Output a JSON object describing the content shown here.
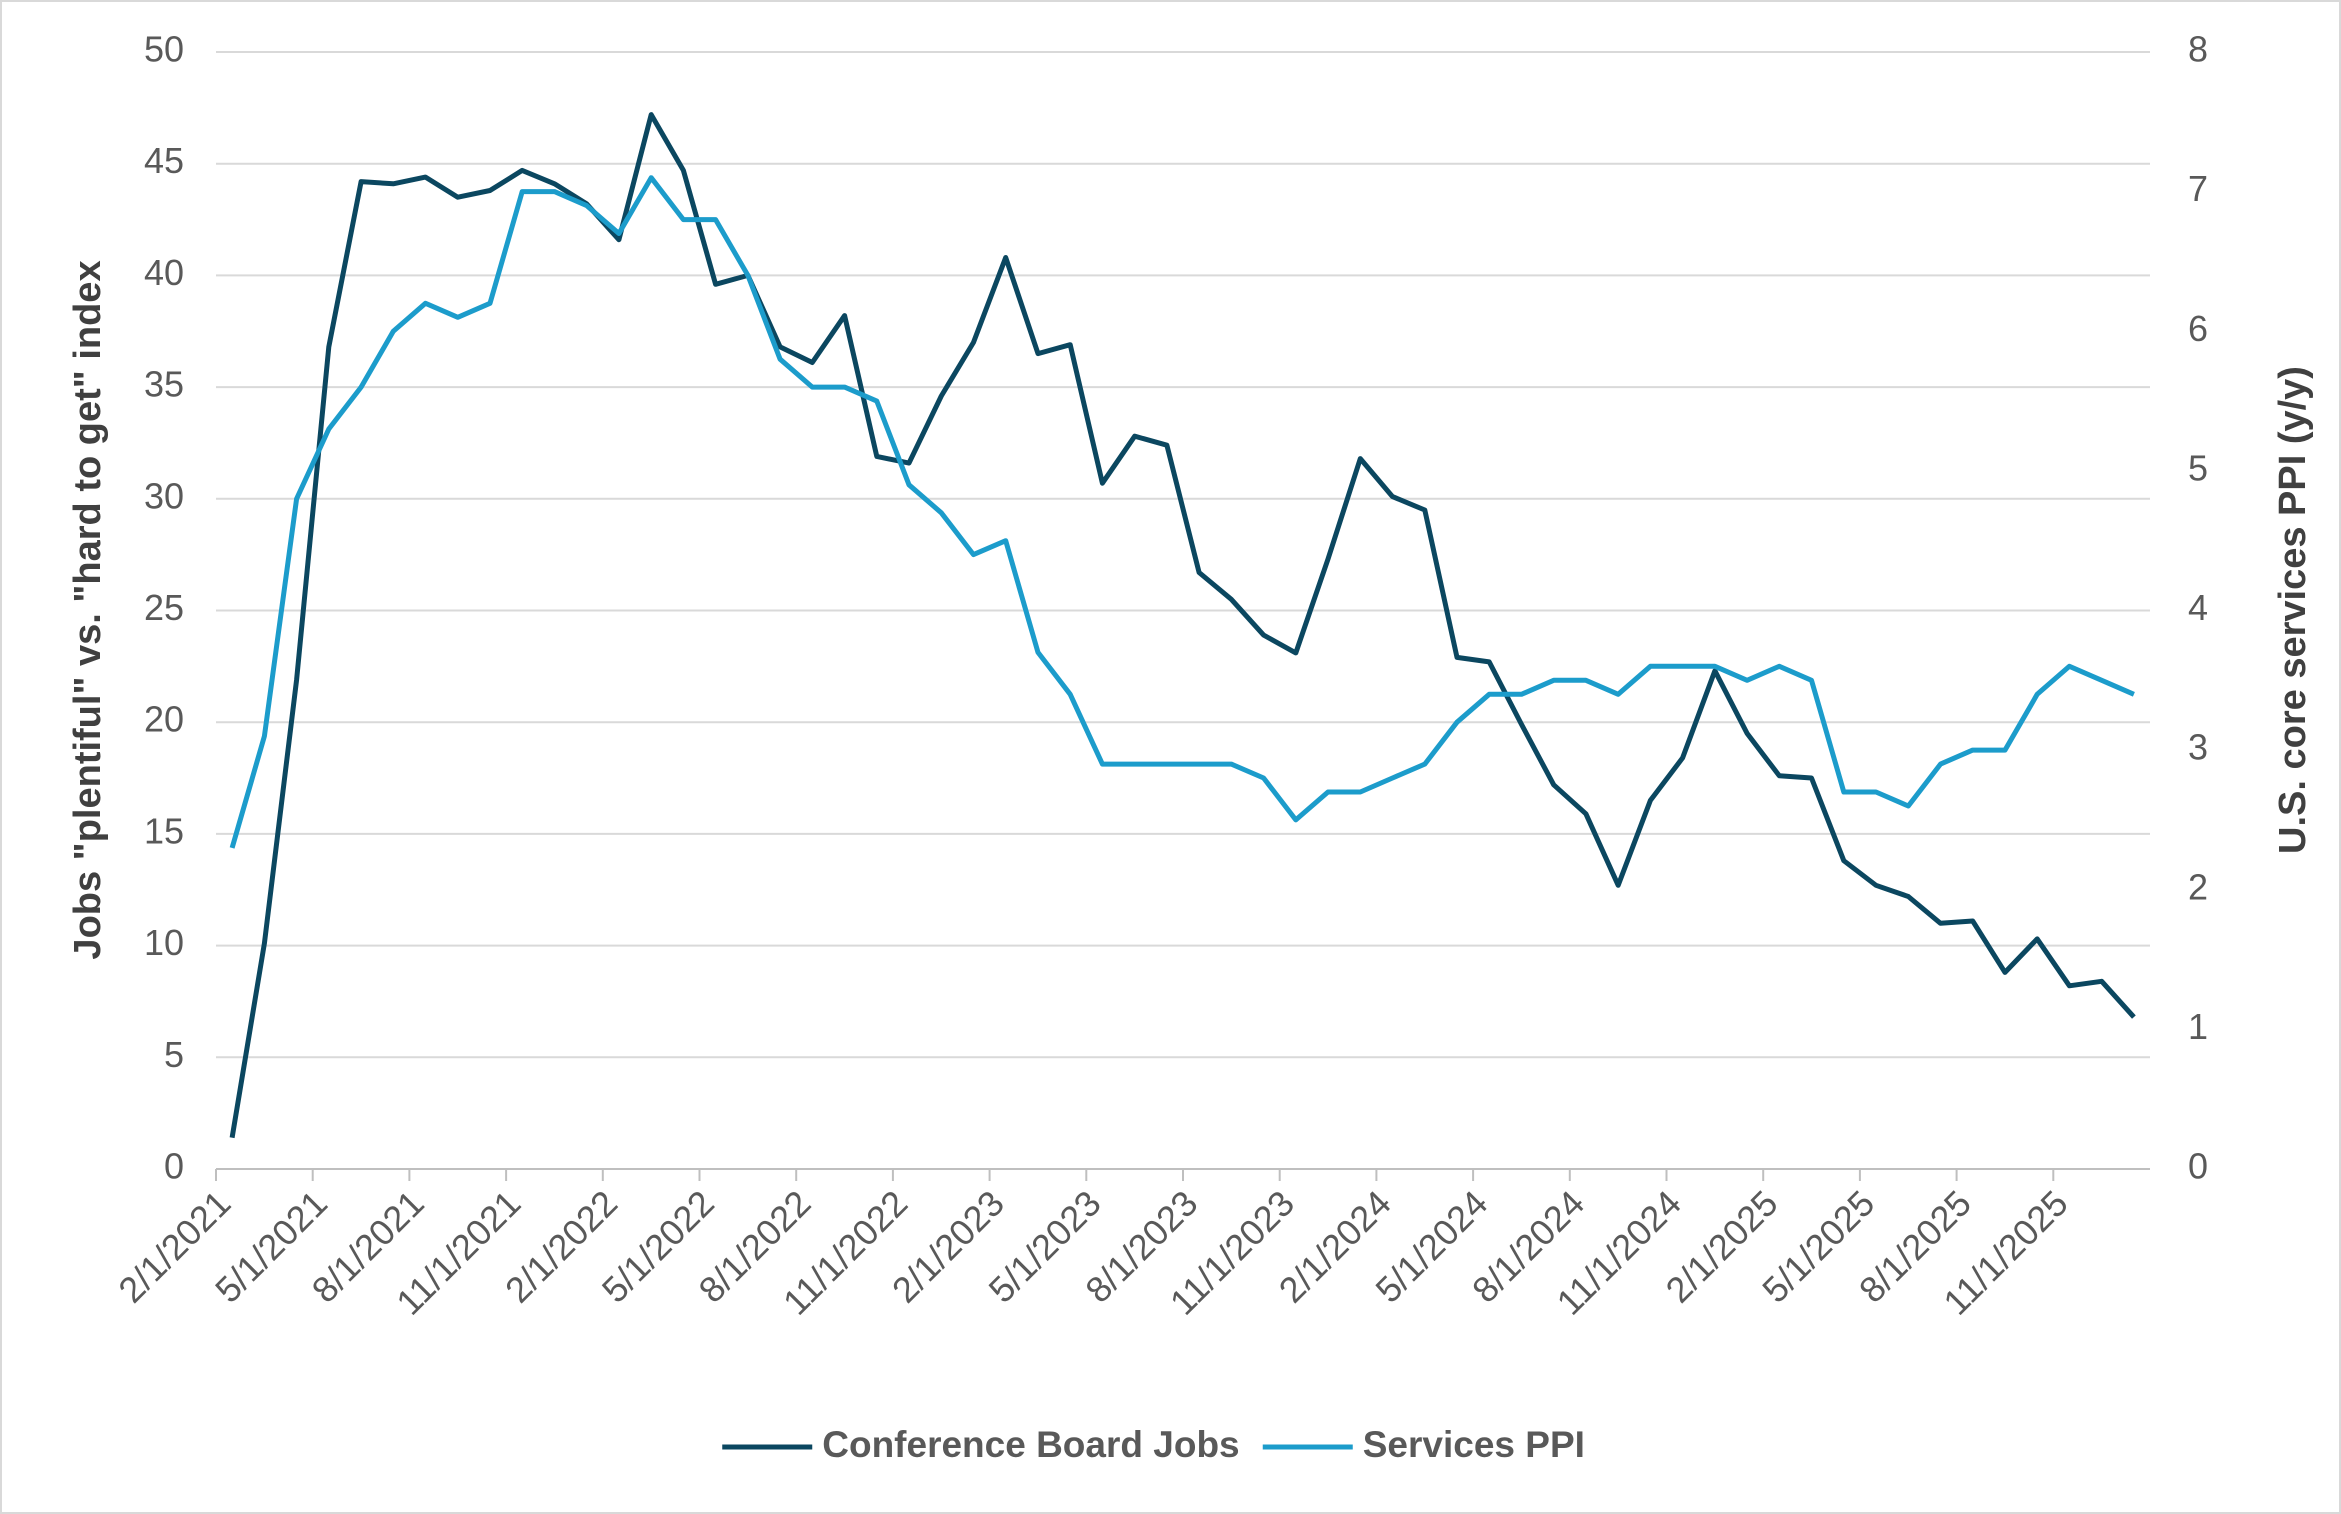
{
  "chart_data": {
    "type": "line",
    "y_label": "Jobs \"plentiful\" vs. \"hard to get\" index",
    "y2_label": "U.S. core services PPI (y/y)",
    "categories": [
      "2/1/2021",
      null,
      null,
      "5/1/2021",
      null,
      null,
      "8/1/2021",
      null,
      null,
      "11/1/2021",
      null,
      null,
      "2/1/2022",
      null,
      null,
      "5/1/2022",
      null,
      null,
      "8/1/2022",
      null,
      null,
      "11/1/2022",
      null,
      null,
      "2/1/2023",
      null,
      null,
      "5/1/2023",
      null,
      null,
      "8/1/2023",
      null,
      null,
      "11/1/2023",
      null,
      null,
      "2/1/2024",
      null,
      null,
      "5/1/2024",
      null,
      null,
      "8/1/2024",
      null,
      null,
      "11/1/2024",
      null,
      null,
      "2/1/2025",
      null,
      null,
      "5/1/2025",
      null,
      null,
      "8/1/2025",
      null,
      null,
      "11/1/2025",
      null,
      null
    ],
    "series": [
      {
        "name": "Conference Board Jobs",
        "color": "#0b4760",
        "values": [
          1.4,
          10.1,
          21.9,
          36.8,
          44.2,
          44.1,
          44.4,
          43.5,
          43.8,
          44.7,
          44.1,
          43.2,
          41.6,
          47.2,
          44.7,
          39.6,
          40.0,
          36.8,
          36.1,
          38.2,
          31.9,
          31.6,
          34.6,
          37.0,
          40.8,
          36.5,
          36.9,
          30.7,
          32.8,
          32.4,
          26.7,
          25.5,
          23.9,
          23.1,
          27.3,
          31.8,
          30.1,
          29.5,
          22.9,
          22.7,
          19.9,
          17.2,
          15.9,
          12.7,
          16.5,
          18.4,
          22.3,
          19.5,
          17.6,
          17.5,
          13.8,
          12.7,
          12.2,
          11.0,
          11.1,
          8.8,
          10.3,
          8.2,
          8.4,
          6.8
        ]
      },
      {
        "name": "Services PPI",
        "color": "#1c9ccb",
        "axis": "y2",
        "values": [
          2.3,
          3.1,
          4.8,
          5.3,
          5.6,
          6.0,
          6.2,
          6.1,
          6.2,
          7.0,
          7.0,
          6.9,
          6.7,
          7.1,
          6.8,
          6.8,
          6.4,
          5.8,
          5.6,
          5.6,
          5.5,
          4.9,
          4.7,
          4.4,
          4.5,
          3.7,
          3.4,
          2.9,
          2.9,
          2.9,
          2.9,
          2.9,
          2.8,
          2.5,
          2.7,
          2.7,
          2.8,
          2.9,
          3.2,
          3.4,
          3.4,
          3.5,
          3.5,
          3.4,
          3.6,
          3.6,
          3.6,
          3.5,
          3.6,
          3.5,
          2.7,
          2.7,
          2.6,
          2.9,
          3.0,
          3.0,
          3.4,
          3.6,
          3.5,
          3.4
        ]
      }
    ],
    "ylim": [
      0,
      50
    ],
    "yticks": [
      0,
      5,
      10,
      15,
      20,
      25,
      30,
      35,
      40,
      45,
      50
    ],
    "y2lim": [
      0,
      8
    ],
    "y2ticks": [
      0,
      1,
      2,
      3,
      4,
      5,
      6,
      7,
      8
    ],
    "grid": true,
    "legend": "bottom"
  }
}
